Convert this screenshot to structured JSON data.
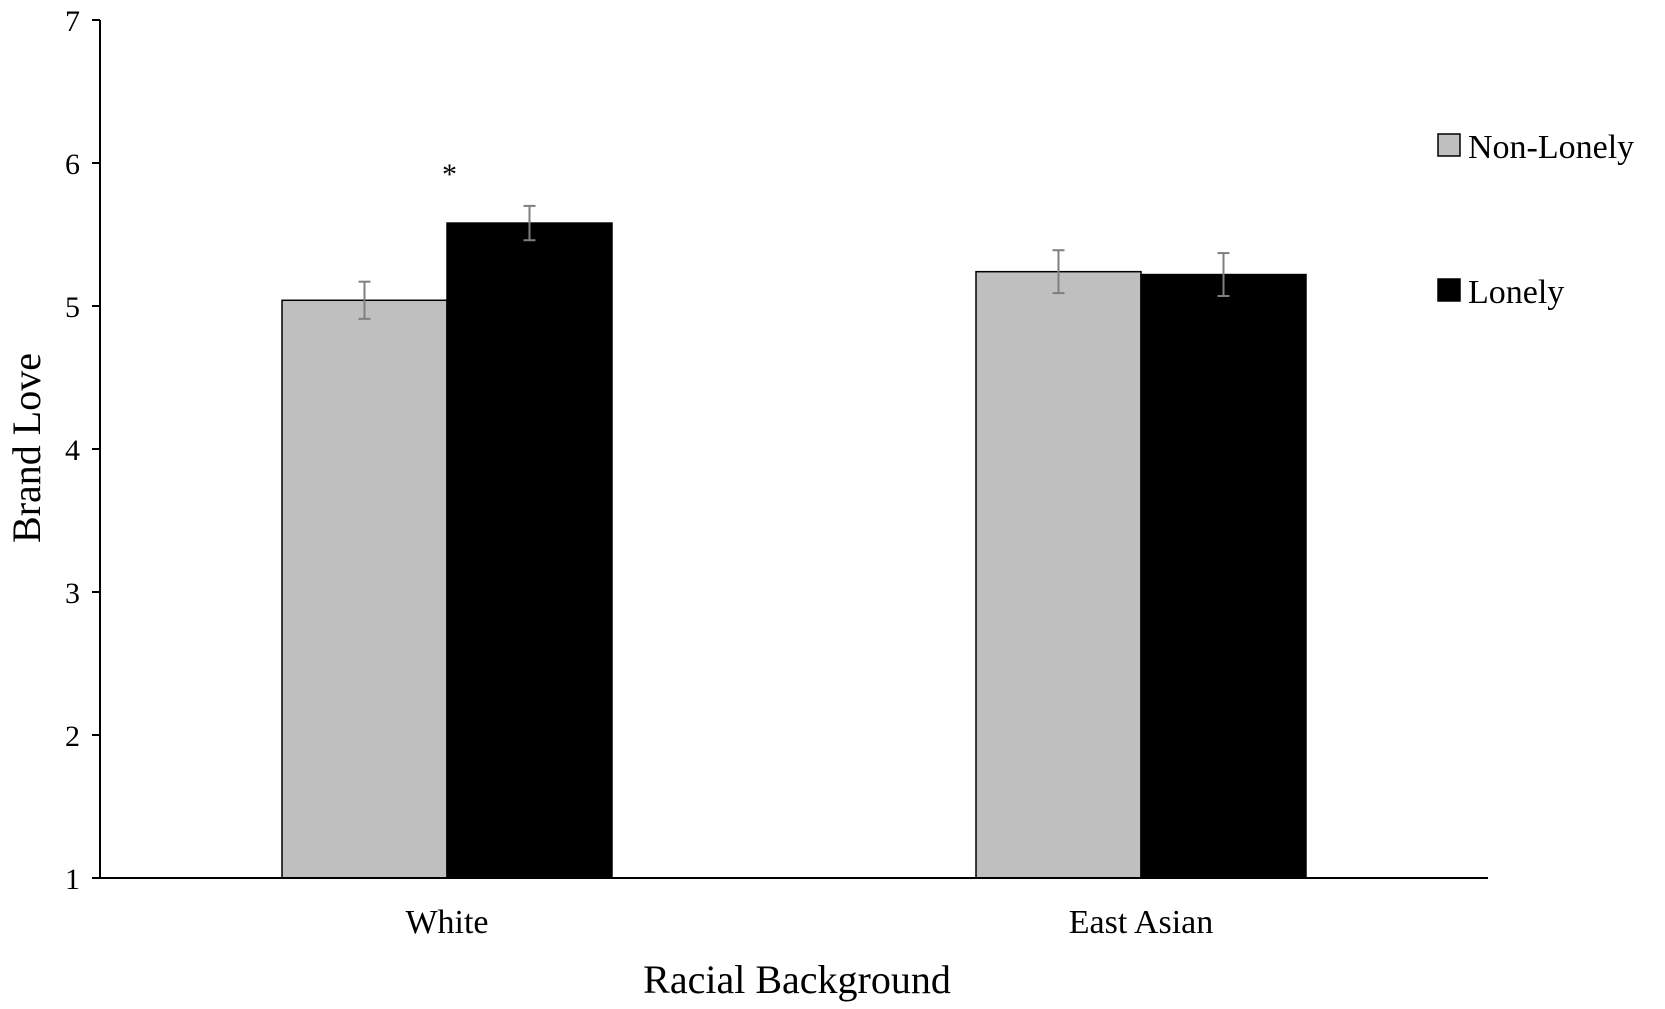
{
  "chart_data": {
    "type": "bar",
    "title": "",
    "xlabel": "Racial Background",
    "ylabel": "Brand Love",
    "ylim": [
      1,
      7
    ],
    "yticks": [
      "1",
      "2",
      "3",
      "4",
      "5",
      "6",
      "7"
    ],
    "categories": [
      "White",
      "East Asian"
    ],
    "series": [
      {
        "name": "Non-Lonely",
        "color": "#bfbfbf",
        "values": [
          5.04,
          5.24
        ],
        "errors": [
          0.13,
          0.15
        ]
      },
      {
        "name": "Lonely",
        "color": "#000000",
        "values": [
          5.58,
          5.22
        ],
        "errors": [
          0.12,
          0.15
        ]
      }
    ],
    "annotations": [
      {
        "text": "*",
        "category": "White",
        "series": "Lonely"
      }
    ],
    "legend": {
      "position": "right"
    },
    "grid": false
  }
}
